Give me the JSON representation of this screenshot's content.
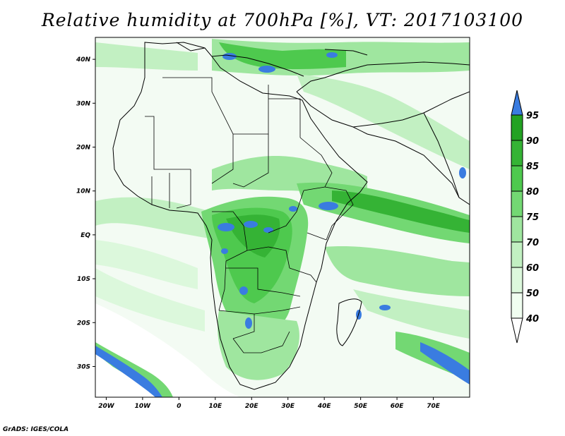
{
  "title": "Relative humidity at 700hPa [%], VT: 2017103100",
  "credit": "GrADS: IGES/COLA",
  "map": {
    "lon_range": [
      -23,
      80
    ],
    "lat_range": [
      -37,
      45
    ],
    "lon_ticks": [
      {
        "value": -20,
        "label": "20W"
      },
      {
        "value": -10,
        "label": "10W"
      },
      {
        "value": 0,
        "label": "0"
      },
      {
        "value": 10,
        "label": "10E"
      },
      {
        "value": 20,
        "label": "20E"
      },
      {
        "value": 30,
        "label": "30E"
      },
      {
        "value": 40,
        "label": "40E"
      },
      {
        "value": 50,
        "label": "50E"
      },
      {
        "value": 60,
        "label": "60E"
      },
      {
        "value": 70,
        "label": "70E"
      }
    ],
    "lat_ticks": [
      {
        "value": 40,
        "label": "40N"
      },
      {
        "value": 30,
        "label": "30N"
      },
      {
        "value": 20,
        "label": "20N"
      },
      {
        "value": 10,
        "label": "10N"
      },
      {
        "value": 0,
        "label": "EQ"
      },
      {
        "value": -10,
        "label": "10S"
      },
      {
        "value": -20,
        "label": "20S"
      },
      {
        "value": -30,
        "label": "30S"
      }
    ]
  },
  "colorbar": {
    "labels": [
      "95",
      "90",
      "85",
      "80",
      "75",
      "70",
      "60",
      "50",
      "40"
    ],
    "colors": [
      "#3a7ce0",
      "#23a223",
      "#35b335",
      "#4ec94e",
      "#73d873",
      "#9fe69f",
      "#c2f0c2",
      "#dcf8dc",
      "#f0fef0",
      "#ffffff"
    ]
  }
}
